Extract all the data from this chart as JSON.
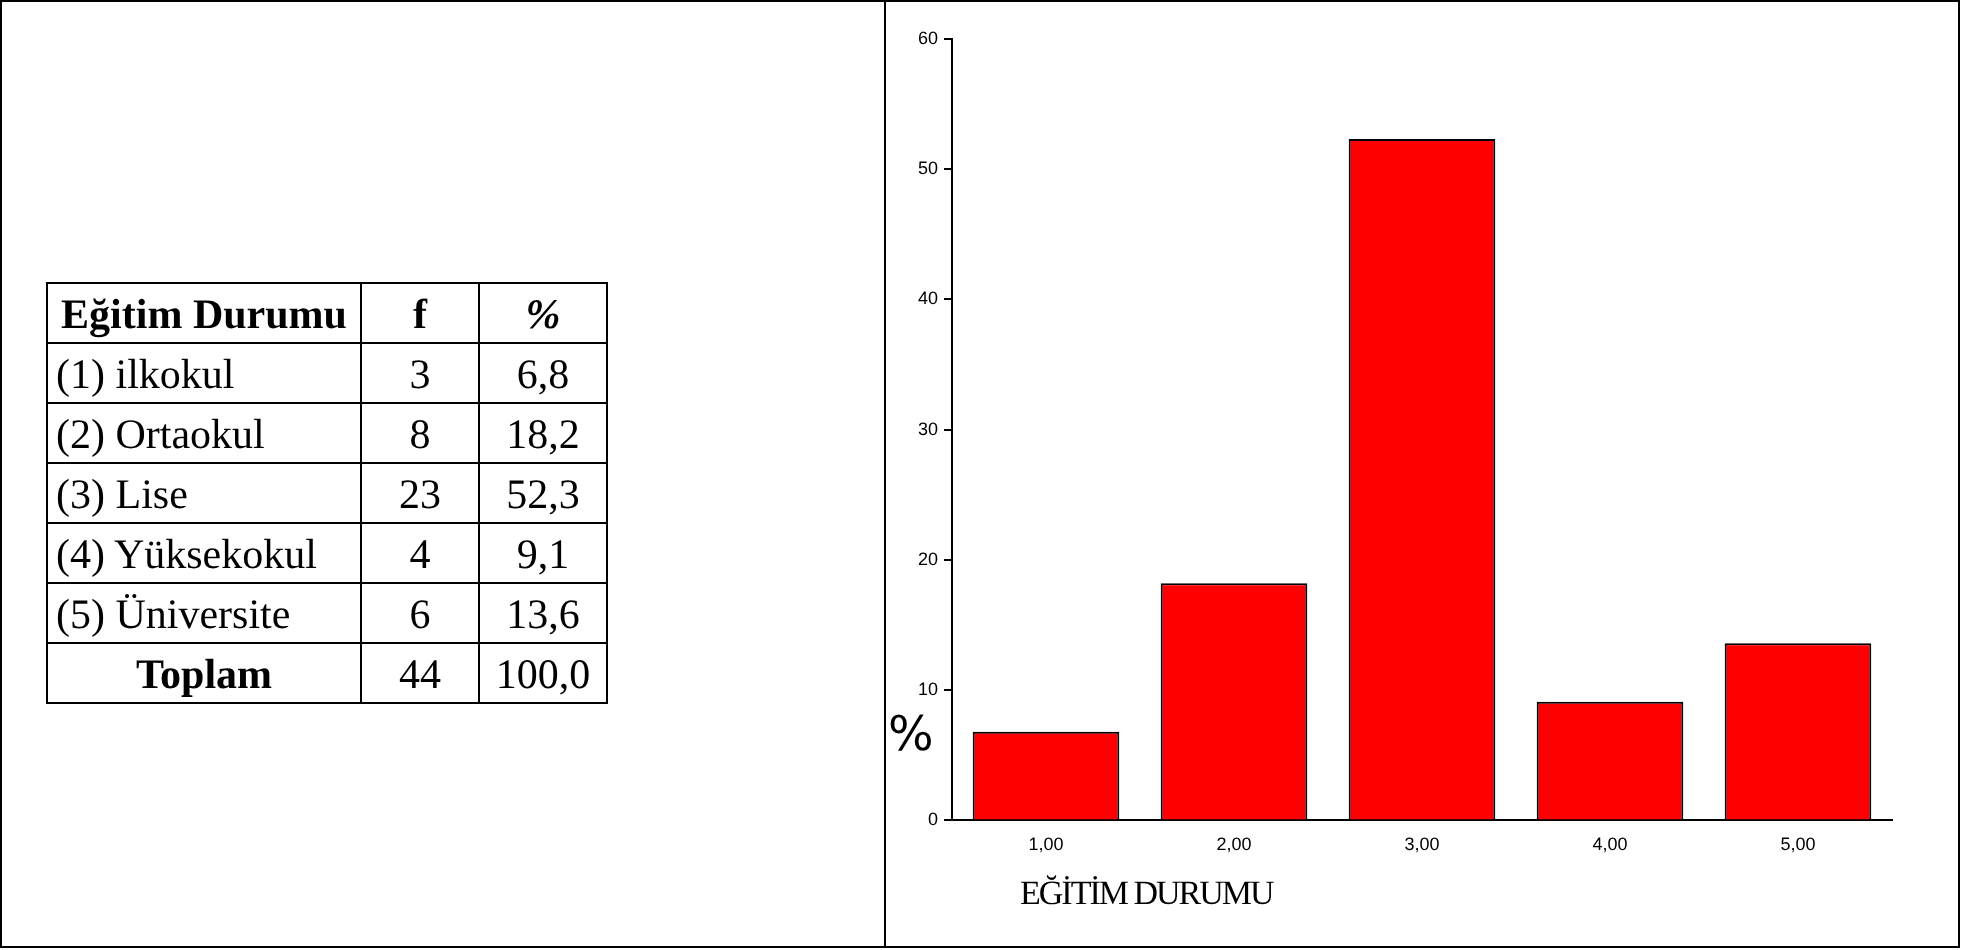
{
  "chart_data": [
    {
      "type": "other",
      "annotations": [
        "Eğitim Durumu",
        "f",
        "%",
        "(1) ilkokul",
        "3",
        "6,8",
        "(2) Ortaokul",
        "8",
        "18,2",
        "(3) Lise",
        "23",
        "52,3",
        "(4) Yüksekokul",
        "4",
        "9,1",
        "(5) Üniversite",
        "6",
        "13,6",
        "Toplam",
        "44",
        "100,0"
      ]
    },
    {
      "type": "bar",
      "categories": [
        "1,00",
        "2,00",
        "3,00",
        "4,00",
        "5,00"
      ],
      "values": [
        6.8,
        18.2,
        52.3,
        9.1,
        13.6
      ],
      "color": "#ff0000",
      "ylim": [
        0,
        60
      ],
      "yticks": [
        0,
        10,
        20,
        30,
        40,
        50,
        60
      ],
      "grid": false,
      "legend": false,
      "ylabel": "%",
      "xlabel": "EĞİTİM DURUMU"
    }
  ]
}
